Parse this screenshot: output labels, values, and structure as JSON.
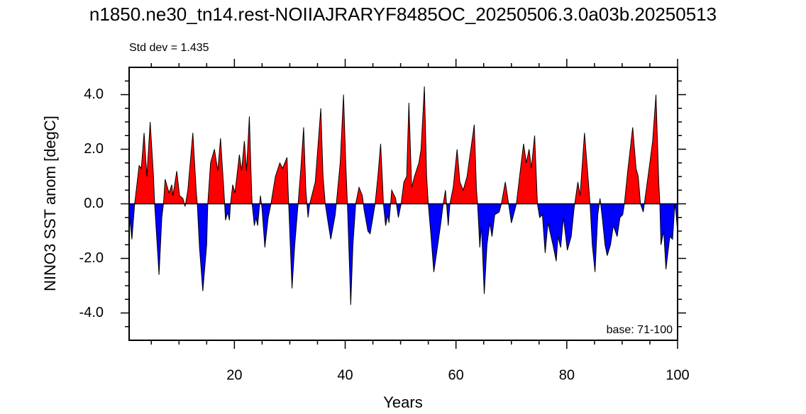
{
  "chart_data": {
    "type": "area",
    "title": "n1850.ne30_tn14.rest-NOIIAJRARYF8485OC_20250506.3.0a03b.20250513",
    "annotations": [
      "Std dev = 1.435",
      "base: 71-100"
    ],
    "xlabel": "Years",
    "ylabel": "NINO3 SST anom [degC]",
    "xlim": [
      1,
      100
    ],
    "ylim": [
      -5,
      5
    ],
    "xticks": [
      20,
      40,
      60,
      80,
      100
    ],
    "yticks": [
      {
        "value": -4,
        "label": "-4.0"
      },
      {
        "value": -2,
        "label": "-2.0"
      },
      {
        "value": 0,
        "label": "0.0"
      },
      {
        "value": 2,
        "label": "2.0"
      },
      {
        "value": 4,
        "label": "4.0"
      }
    ],
    "xminorticks": [
      5,
      10,
      15,
      25,
      30,
      35,
      45,
      50,
      55,
      65,
      70,
      75,
      85,
      90,
      95
    ],
    "yminorticks": [
      -4.5,
      -3.5,
      -3,
      -2.5,
      -1.5,
      -1,
      -0.5,
      0.5,
      1,
      1.5,
      2.5,
      3,
      3.5,
      4.5
    ],
    "above_color": "#ff0000",
    "below_color": "#0000ff",
    "x": [
      1.0,
      1.5,
      2.0,
      2.8,
      3.2,
      3.7,
      4.2,
      4.8,
      5.4,
      5.6,
      6.4,
      6.9,
      7.2,
      7.5,
      8.2,
      8.7,
      8.9,
      9.6,
      10.1,
      10.7,
      11.1,
      11.6,
      12.5,
      13.1,
      13.3,
      13.7,
      14.3,
      15.0,
      15.2,
      15.7,
      16.4,
      17.0,
      17.5,
      18.1,
      18.4,
      18.8,
      19.1,
      19.3,
      19.7,
      20.1,
      20.9,
      21.3,
      21.8,
      22.2,
      22.7,
      23.1,
      23.2,
      23.6,
      23.9,
      24.2,
      24.7,
      25.0,
      25.5,
      26.1,
      26.6,
      27.4,
      28.2,
      28.7,
      29.5,
      29.7,
      29.8,
      30.4,
      30.9,
      31.5,
      32.0,
      32.5,
      32.9,
      33.3,
      33.6,
      34.6,
      35.6,
      36.0,
      36.4,
      37.0,
      37.4,
      38.2,
      38.4,
      39.1,
      39.7,
      40.1,
      40.4,
      40.6,
      41.0,
      41.4,
      41.9,
      42.5,
      43.1,
      43.4,
      44.1,
      44.5,
      45.0,
      45.4,
      45.9,
      46.4,
      46.8,
      46.9,
      47.3,
      47.7,
      47.9,
      48.2,
      48.4,
      49.1,
      49.6,
      50.1,
      50.6,
      51.1,
      51.5,
      52.0,
      52.5,
      53.3,
      53.7,
      54.3,
      54.7,
      55.0,
      55.5,
      56.0,
      56.5,
      57.2,
      57.7,
      58.1,
      58.6,
      58.9,
      59.5,
      60.2,
      60.7,
      61.3,
      62.0,
      63.3,
      63.7,
      63.9,
      64.3,
      64.6,
      65.1,
      65.6,
      66.1,
      66.5,
      67.0,
      67.8,
      68.2,
      68.9,
      69.5,
      70.0,
      70.4,
      70.9,
      71.6,
      72.2,
      72.7,
      73.2,
      73.6,
      74.2,
      74.6,
      74.7,
      75.1,
      75.6,
      76.1,
      76.6,
      77.5,
      78.1,
      78.4,
      78.9,
      79.4,
      80.1,
      80.8,
      81.3,
      82.0,
      82.4,
      83.2,
      83.9,
      84.2,
      84.6,
      85.1,
      85.6,
      86.0,
      86.4,
      86.9,
      87.3,
      87.9,
      88.4,
      89.1,
      89.6,
      90.1,
      90.4,
      91.0,
      91.9,
      92.5,
      92.9,
      93.3,
      93.8,
      94.2,
      95.0,
      95.5,
      96.1,
      96.6,
      96.8,
      97.0,
      97.5,
      97.9,
      98.6,
      99.1,
      99.5,
      99.7,
      100.0
    ],
    "values": [
      -0.3,
      -1.3,
      0,
      1.4,
      1.3,
      2.6,
      1.0,
      3.0,
      1.0,
      0,
      -2.6,
      -0.5,
      0,
      0.9,
      0.4,
      0.7,
      0.3,
      1.2,
      0.3,
      0.2,
      -0.1,
      0.5,
      2.6,
      0.5,
      0,
      -1.6,
      -3.2,
      -1.5,
      0,
      1.5,
      2.0,
      1.2,
      2.4,
      0.5,
      -0.6,
      -0.3,
      -0.6,
      0,
      0.7,
      0.4,
      1.8,
      1.2,
      2.3,
      1.2,
      3.2,
      0.5,
      0,
      -0.8,
      -0.5,
      -0.8,
      0.3,
      -0.2,
      -1.6,
      -0.5,
      0,
      1.0,
      1.5,
      1.3,
      1.7,
      0.5,
      0,
      -3.1,
      -1.5,
      0,
      1.3,
      2.8,
      0.5,
      -0.5,
      0,
      0.8,
      3.5,
      1.0,
      0,
      -0.8,
      -1.3,
      -0.4,
      0,
      1.5,
      4.0,
      1.5,
      0,
      -1.2,
      -3.7,
      -1.5,
      0,
      0.6,
      0.3,
      -0.2,
      -1.0,
      -1.1,
      -0.5,
      0,
      1.0,
      2.2,
      0.5,
      0,
      -0.8,
      -0.4,
      -0.7,
      0,
      0.5,
      0.2,
      -0.5,
      0,
      0.8,
      1.0,
      3.7,
      0.6,
      1.0,
      1.5,
      2.0,
      4.3,
      1.0,
      0,
      -1.2,
      -2.5,
      -1.8,
      -0.8,
      0,
      0.5,
      -0.8,
      0,
      0.6,
      2.0,
      0.8,
      0.5,
      1.0,
      2.9,
      0.5,
      0,
      -1.6,
      -0.8,
      -3.3,
      -1.5,
      -0.7,
      -1.2,
      -0.4,
      -0.3,
      0,
      0.8,
      0,
      -0.7,
      -0.4,
      0,
      1.2,
      2.2,
      1.5,
      2.0,
      1.3,
      2.5,
      0.5,
      0,
      -0.5,
      -0.4,
      -1.8,
      -0.7,
      -1.5,
      -2.1,
      -1.2,
      -1.6,
      -0.5,
      -1.7,
      -1.2,
      -0.2,
      0.8,
      0.3,
      2.6,
      0.8,
      0,
      -1.5,
      -2.5,
      -0.4,
      0.2,
      -0.5,
      -1.5,
      -1.9,
      -1.5,
      -0.8,
      -1.2,
      -0.5,
      -0.4,
      0,
      1.2,
      2.8,
      1.3,
      1.0,
      0,
      -0.3,
      0.3,
      1.5,
      2.3,
      4.0,
      0.8,
      0,
      -1.5,
      -1.0,
      -2.4,
      -1.2,
      -1.3,
      0,
      -0.3,
      -1.0
    ]
  }
}
